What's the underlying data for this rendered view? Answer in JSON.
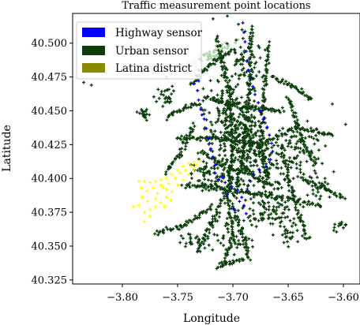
{
  "chart_data": {
    "type": "scatter",
    "title": "Traffic measurement point locations",
    "xlabel": "Longitude",
    "ylabel": "Latitude",
    "xlim": [
      -3.845,
      -3.585
    ],
    "ylim": [
      40.322,
      40.522
    ],
    "xticks": [
      -3.8,
      -3.75,
      -3.7,
      -3.65,
      -3.6
    ],
    "xtick_labels": [
      "−3.80",
      "−3.75",
      "−3.70",
      "−3.65",
      "−3.60"
    ],
    "yticks": [
      40.325,
      40.35,
      40.375,
      40.4,
      40.425,
      40.45,
      40.475,
      40.5
    ],
    "ytick_labels": [
      "40.325",
      "40.350",
      "40.375",
      "40.400",
      "40.425",
      "40.450",
      "40.475",
      "40.500"
    ],
    "grid": false,
    "legend_position": "top-left",
    "series": [
      {
        "name": "Highway sensor",
        "color": "#0000ff",
        "marker": "plus",
        "points": [
          [
            -3.73,
            40.488
          ],
          [
            -3.731,
            40.48
          ],
          [
            -3.731,
            40.472
          ],
          [
            -3.732,
            40.465
          ],
          [
            -3.731,
            40.458
          ],
          [
            -3.729,
            40.451
          ],
          [
            -3.726,
            40.444
          ],
          [
            -3.724,
            40.437
          ],
          [
            -3.722,
            40.43
          ],
          [
            -3.72,
            40.422
          ],
          [
            -3.718,
            40.416
          ],
          [
            -3.716,
            40.41
          ],
          [
            -3.716,
            40.404
          ],
          [
            -3.713,
            40.399
          ],
          [
            -3.707,
            40.397
          ],
          [
            -3.701,
            40.394
          ],
          [
            -3.696,
            40.391
          ],
          [
            -3.692,
            40.386
          ],
          [
            -3.69,
            40.38
          ],
          [
            -3.688,
            40.374
          ],
          [
            -3.687,
            40.392
          ],
          [
            -3.684,
            40.398
          ],
          [
            -3.681,
            40.403
          ],
          [
            -3.676,
            40.406
          ],
          [
            -3.67,
            40.409
          ],
          [
            -3.666,
            40.414
          ],
          [
            -3.664,
            40.42
          ],
          [
            -3.665,
            40.426
          ],
          [
            -3.667,
            40.432
          ],
          [
            -3.669,
            40.438
          ],
          [
            -3.672,
            40.444
          ],
          [
            -3.675,
            40.45
          ],
          [
            -3.677,
            40.456
          ],
          [
            -3.68,
            40.462
          ],
          [
            -3.682,
            40.468
          ],
          [
            -3.684,
            40.474
          ],
          [
            -3.686,
            40.48
          ],
          [
            -3.687,
            40.487
          ],
          [
            -3.688,
            40.494
          ],
          [
            -3.689,
            40.501
          ],
          [
            -3.69,
            40.508
          ],
          [
            -3.691,
            40.515
          ],
          [
            -3.735,
            40.47
          ],
          [
            -3.733,
            40.476
          ],
          [
            -3.728,
            40.447
          ],
          [
            -3.721,
            40.426
          ],
          [
            -3.694,
            40.383
          ],
          [
            -3.699,
            40.377
          ],
          [
            -3.705,
            40.388
          ],
          [
            -3.71,
            40.401
          ]
        ]
      },
      {
        "name": "Urban sensor",
        "color": "#0a3d0a",
        "marker": "plus",
        "points": []
      },
      {
        "name": "Latina district",
        "color": "#ffff00",
        "marker": "plus",
        "points": [
          [
            -3.785,
            40.398
          ],
          [
            -3.78,
            40.398
          ],
          [
            -3.775,
            40.397
          ],
          [
            -3.77,
            40.398
          ],
          [
            -3.765,
            40.399
          ],
          [
            -3.76,
            40.4
          ],
          [
            -3.755,
            40.403
          ],
          [
            -3.75,
            40.406
          ],
          [
            -3.745,
            40.409
          ],
          [
            -3.74,
            40.411
          ],
          [
            -3.735,
            40.412
          ],
          [
            -3.73,
            40.413
          ],
          [
            -3.735,
            40.407
          ],
          [
            -3.74,
            40.403
          ],
          [
            -3.745,
            40.399
          ],
          [
            -3.75,
            40.395
          ],
          [
            -3.755,
            40.39
          ],
          [
            -3.76,
            40.386
          ],
          [
            -3.765,
            40.382
          ],
          [
            -3.77,
            40.379
          ],
          [
            -3.775,
            40.377
          ],
          [
            -3.78,
            40.375
          ],
          [
            -3.785,
            40.38
          ],
          [
            -3.782,
            40.386
          ],
          [
            -3.778,
            40.391
          ],
          [
            -3.772,
            40.393
          ],
          [
            -3.768,
            40.389
          ],
          [
            -3.763,
            40.393
          ],
          [
            -3.758,
            40.396
          ],
          [
            -3.752,
            40.4
          ],
          [
            -3.748,
            40.404
          ],
          [
            -3.743,
            40.406
          ],
          [
            -3.738,
            40.409
          ],
          [
            -3.733,
            40.41
          ],
          [
            -3.79,
            40.379
          ],
          [
            -3.775,
            40.372
          ],
          [
            -3.78,
            40.368
          ],
          [
            -3.77,
            40.385
          ],
          [
            -3.765,
            40.395
          ],
          [
            -3.76,
            40.392
          ],
          [
            -3.756,
            40.384
          ],
          [
            -3.762,
            40.379
          ],
          [
            -3.777,
            40.383
          ],
          [
            -3.783,
            40.393
          ]
        ]
      }
    ]
  }
}
